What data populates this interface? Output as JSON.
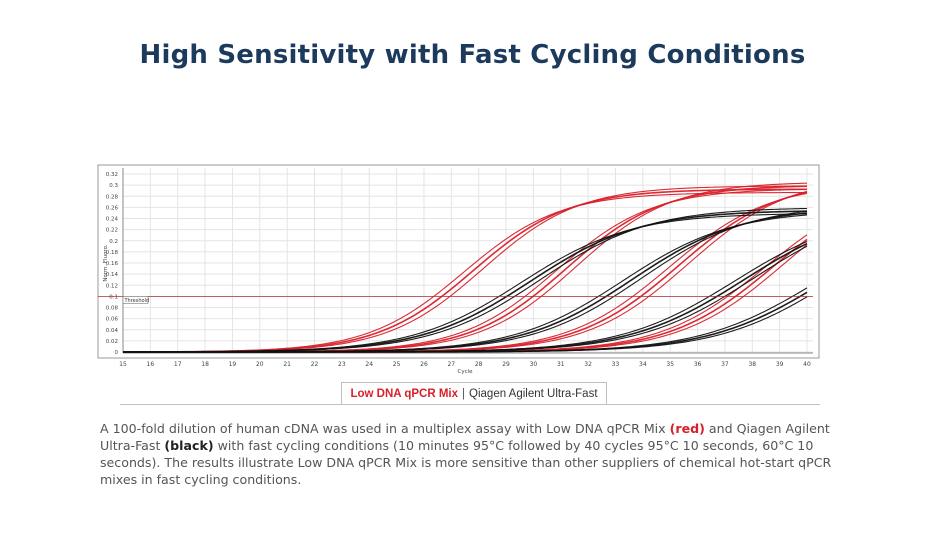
{
  "title": "High Sensitivity with Fast Cycling Conditions",
  "legend": {
    "red_label": "Low DNA qPCR Mix",
    "separator": "|",
    "black_label": "Qiagen Agilent Ultra-Fast"
  },
  "caption": {
    "part1": "A 100-fold dilution of human cDNA was used in a multiplex assay with Low DNA qPCR Mix ",
    "red_word": "(red)",
    "part2": " and Qiagen Agilent Ultra-Fast ",
    "black_word": "(black)",
    "part3": " with fast cycling conditions (10 minutes 95°C followed by 40 cycles 95°C 10 seconds, 60°C 10 seconds). The results illustrate Low DNA qPCR Mix is more sensitive than other suppliers of chemical hot-start qPCR mixes in fast cycling conditions."
  },
  "colors": {
    "red": "#d8202a",
    "black": "#111111",
    "title": "#1b3a5c",
    "threshold": "#b03030"
  },
  "chart_data": {
    "type": "line",
    "xlabel": "Cycle",
    "ylabel": "Norm. Fluoro.",
    "xlim": [
      15,
      40
    ],
    "ylim": [
      0,
      0.32
    ],
    "x_ticks": [
      "15",
      "16",
      "17",
      "18",
      "19",
      "20",
      "21",
      "22",
      "23",
      "24",
      "25",
      "26",
      "27",
      "28",
      "29",
      "30",
      "31",
      "32",
      "33",
      "34",
      "35",
      "36",
      "37",
      "38",
      "39",
      "40"
    ],
    "y_ticks": [
      "0",
      "0.02",
      "0.04",
      "0.06",
      "0.08",
      "0.1",
      "0.12",
      "0.14",
      "0.16",
      "0.18",
      "0.2",
      "0.22",
      "0.24",
      "0.26",
      "0.28",
      "0.3",
      "0.32"
    ],
    "threshold": {
      "label": "Threshold",
      "value": 0.1
    },
    "series": [
      {
        "name": "Low DNA qPCR Mix 1",
        "color": "red",
        "midpoint": 27.8,
        "slope": 1.75,
        "plateau": 0.293,
        "curves": 3
      },
      {
        "name": "Low DNA qPCR Mix 2",
        "color": "red",
        "midpoint": 31.2,
        "slope": 1.75,
        "plateau": 0.3,
        "curves": 3
      },
      {
        "name": "Low DNA qPCR Mix 3",
        "color": "red",
        "midpoint": 35.3,
        "slope": 1.85,
        "plateau": 0.31,
        "curves": 3
      },
      {
        "name": "Low DNA qPCR Mix 4",
        "color": "red",
        "midpoint": 38.8,
        "slope": 1.9,
        "plateau": 0.31,
        "curves": 3
      },
      {
        "name": "Qiagen Agilent Ultra-Fast 1",
        "color": "black",
        "midpoint": 29.9,
        "slope": 2.0,
        "plateau": 0.255,
        "curves": 3
      },
      {
        "name": "Qiagen Agilent Ultra-Fast 2",
        "color": "black",
        "midpoint": 33.6,
        "slope": 2.0,
        "plateau": 0.26,
        "curves": 3
      },
      {
        "name": "Qiagen Agilent Ultra-Fast 3",
        "color": "black",
        "midpoint": 37.7,
        "slope": 2.1,
        "plateau": 0.26,
        "curves": 3
      },
      {
        "name": "Qiagen Agilent Ultra-Fast 4",
        "color": "black",
        "midpoint": 40.6,
        "slope": 2.1,
        "plateau": 0.25,
        "curves": 3
      }
    ]
  }
}
